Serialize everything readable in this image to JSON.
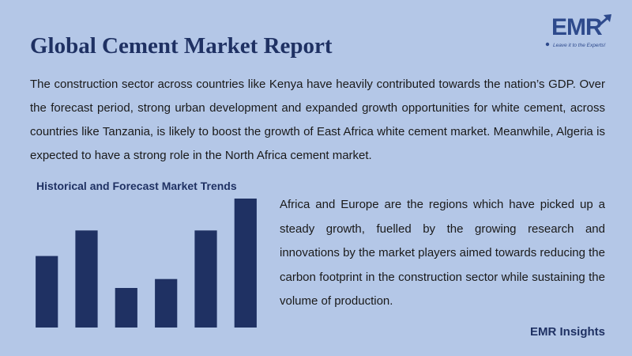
{
  "header": {
    "title": "Global Cement Market Report",
    "logo": {
      "name": "EMR",
      "tagline": "Leave it to the Experts!",
      "icon": "upward-arrow-icon",
      "color": "#2e4a8c"
    }
  },
  "intro": {
    "text": "The construction sector across countries like Kenya have heavily contributed towards the nation’s GDP. Over the forecast period, strong urban development and expanded growth opportunities for white cement, across countries like Tanzania, is likely to boost the growth of East Africa white cement market. Meanwhile, Algeria is expected to have a strong role in the North Africa cement market."
  },
  "chart_section": {
    "title": "Historical and Forecast Market Trends"
  },
  "chart_data": {
    "type": "bar",
    "title": "Historical and Forecast Market Trends",
    "categories": [
      "",
      "",
      "",
      "",
      "",
      ""
    ],
    "values": [
      56,
      76,
      31,
      38,
      76,
      101
    ],
    "ylim": [
      0,
      101
    ],
    "grid": false,
    "bar_color": "#1f3163",
    "legend": "none"
  },
  "side": {
    "text": "Africa and Europe are the regions which have picked up a steady growth, fuelled by the growing research and innovations by the market players aimed towards reducing the carbon footprint in the construction sector while sustaining the volume of production."
  },
  "footer": {
    "brand": "EMR Insights"
  },
  "colors": {
    "background": "#b4c7e7",
    "accent": "#1f3163"
  }
}
